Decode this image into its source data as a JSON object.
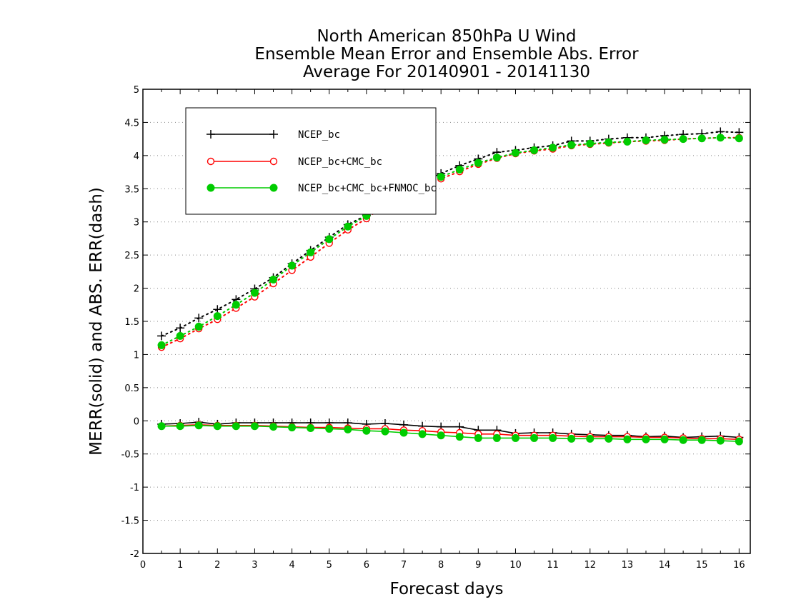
{
  "chart_data": {
    "type": "line",
    "title_lines": [
      "North American 850hPa U Wind",
      "Ensemble Mean Error and Ensemble Abs. Error",
      "Average For 20140901 - 20141130"
    ],
    "xlabel": "Forecast days",
    "ylabel": "MERR(solid) and ABS. ERR(dash)",
    "xlim": [
      0,
      16.3
    ],
    "ylim": [
      -2,
      5
    ],
    "xticks": [
      0,
      1,
      2,
      3,
      4,
      5,
      6,
      7,
      8,
      9,
      10,
      11,
      12,
      13,
      14,
      15,
      16
    ],
    "yticks": [
      -2,
      -1.5,
      -1,
      -0.5,
      0,
      0.5,
      1,
      1.5,
      2,
      2.5,
      3,
      3.5,
      4,
      4.5,
      5
    ],
    "ytick_labels": [
      "-2",
      "-1.5",
      "-1",
      "-0.5",
      "0",
      "0.5",
      "1",
      "1.5",
      "2",
      "2.5",
      "3",
      "3.5",
      "4",
      "4.5",
      "5"
    ],
    "grid": "horizontal dotted",
    "legend_position": "top-left",
    "x": [
      0.5,
      1,
      1.5,
      2,
      2.5,
      3,
      3.5,
      4,
      4.5,
      5,
      5.5,
      6,
      6.5,
      7,
      7.5,
      8,
      8.5,
      9,
      9.5,
      10,
      10.5,
      11,
      11.5,
      12,
      12.5,
      13,
      13.5,
      14,
      14.5,
      15,
      15.5,
      16
    ],
    "series": [
      {
        "name": "NCEP_bc",
        "color": "#000000",
        "marker": "plus",
        "merr": [
          -0.05,
          -0.04,
          -0.02,
          -0.05,
          -0.03,
          -0.03,
          -0.03,
          -0.03,
          -0.03,
          -0.03,
          -0.03,
          -0.05,
          -0.04,
          -0.06,
          -0.08,
          -0.09,
          -0.09,
          -0.14,
          -0.14,
          -0.19,
          -0.18,
          -0.18,
          -0.2,
          -0.21,
          -0.22,
          -0.22,
          -0.24,
          -0.23,
          -0.25,
          -0.24,
          -0.23,
          -0.25
        ],
        "abs_err": [
          1.28,
          1.4,
          1.55,
          1.68,
          1.83,
          1.99,
          2.16,
          2.37,
          2.57,
          2.77,
          2.96,
          3.1,
          3.3,
          3.5,
          3.6,
          3.73,
          3.85,
          3.95,
          4.05,
          4.08,
          4.12,
          4.15,
          4.22,
          4.22,
          4.25,
          4.27,
          4.27,
          4.3,
          4.32,
          4.33,
          4.36,
          4.35
        ]
      },
      {
        "name": "NCEP_bc+CMC_bc",
        "color": "#ff0000",
        "marker": "open-circle",
        "merr": [
          -0.08,
          -0.07,
          -0.06,
          -0.07,
          -0.07,
          -0.07,
          -0.08,
          -0.09,
          -0.1,
          -0.1,
          -0.11,
          -0.12,
          -0.12,
          -0.14,
          -0.15,
          -0.17,
          -0.18,
          -0.2,
          -0.2,
          -0.22,
          -0.22,
          -0.22,
          -0.23,
          -0.24,
          -0.24,
          -0.24,
          -0.25,
          -0.25,
          -0.26,
          -0.27,
          -0.27,
          -0.28
        ],
        "abs_err": [
          1.11,
          1.24,
          1.39,
          1.53,
          1.7,
          1.87,
          2.07,
          2.27,
          2.47,
          2.68,
          2.88,
          3.05,
          3.25,
          3.44,
          3.55,
          3.65,
          3.76,
          3.87,
          3.96,
          4.03,
          4.07,
          4.1,
          4.15,
          4.17,
          4.19,
          4.21,
          4.22,
          4.23,
          4.25,
          4.26,
          4.27,
          4.27
        ]
      },
      {
        "name": "NCEP_bc+CMC_bc+FNMOC_bc",
        "color": "#00cc00",
        "marker": "filled-circle",
        "merr": [
          -0.08,
          -0.08,
          -0.07,
          -0.08,
          -0.08,
          -0.08,
          -0.09,
          -0.1,
          -0.11,
          -0.12,
          -0.13,
          -0.15,
          -0.16,
          -0.18,
          -0.2,
          -0.22,
          -0.24,
          -0.26,
          -0.26,
          -0.26,
          -0.26,
          -0.26,
          -0.27,
          -0.27,
          -0.27,
          -0.28,
          -0.28,
          -0.28,
          -0.29,
          -0.29,
          -0.3,
          -0.31
        ],
        "abs_err": [
          1.14,
          1.28,
          1.42,
          1.58,
          1.75,
          1.93,
          2.13,
          2.34,
          2.54,
          2.74,
          2.93,
          3.09,
          3.28,
          3.47,
          3.57,
          3.68,
          3.79,
          3.89,
          3.97,
          4.04,
          4.08,
          4.12,
          4.16,
          4.18,
          4.2,
          4.21,
          4.23,
          4.24,
          4.25,
          4.26,
          4.27,
          4.26
        ]
      }
    ]
  }
}
